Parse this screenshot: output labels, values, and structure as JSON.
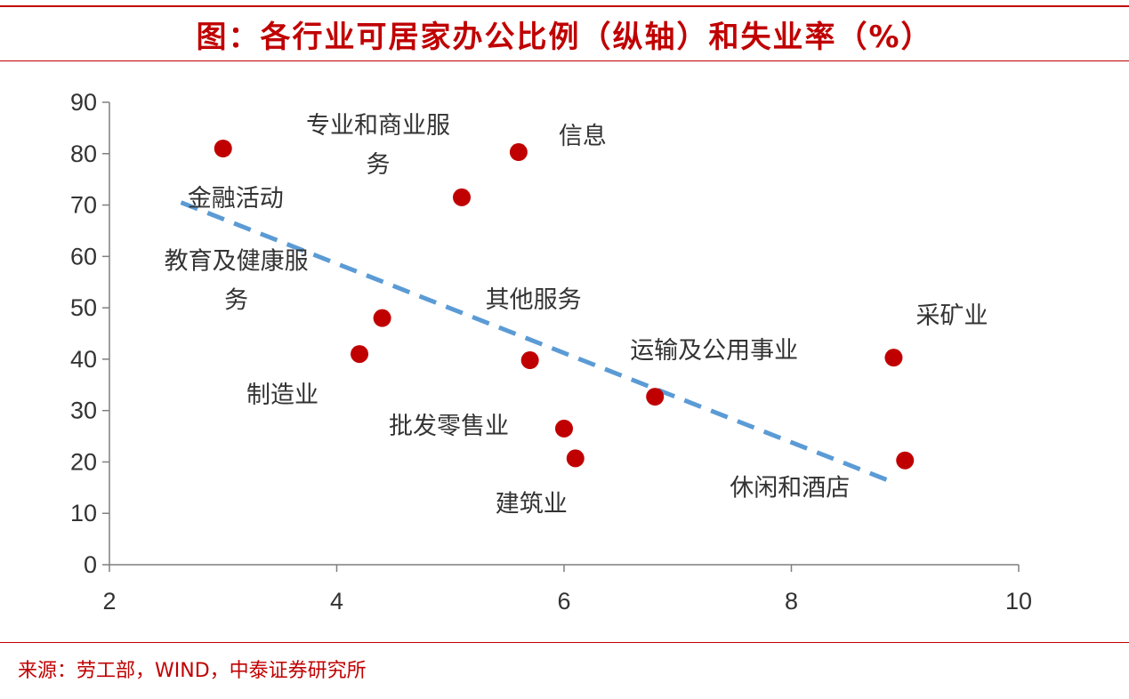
{
  "title": "图：各行业可居家办公比例（纵轴）和失业率（%）",
  "source": "来源：劳工部，WIND，中泰证券研究所",
  "colors": {
    "accent": "#c00000",
    "point": "#c00000",
    "trend": "#5b9bd5",
    "axis": "#7f7f7f"
  },
  "chart_data": {
    "type": "scatter",
    "xlim": [
      2,
      10
    ],
    "ylim": [
      0,
      90
    ],
    "xticks": [
      2,
      4,
      6,
      8,
      10
    ],
    "yticks": [
      0,
      10,
      20,
      30,
      40,
      50,
      60,
      70,
      80,
      90
    ],
    "grid": false,
    "points": [
      {
        "label": [
          "金融活动"
        ],
        "x": 3.0,
        "y": 81
      },
      {
        "label": [
          "专业和商业服",
          "务"
        ],
        "x": 5.1,
        "y": 71.5
      },
      {
        "label": [
          "信息"
        ],
        "x": 5.6,
        "y": 80.3
      },
      {
        "label": [
          "教育及健康服",
          "务"
        ],
        "x": 4.4,
        "y": 48
      },
      {
        "label": [
          "制造业"
        ],
        "x": 4.2,
        "y": 41
      },
      {
        "label": [
          "其他服务"
        ],
        "x": 5.7,
        "y": 39.8
      },
      {
        "label": [
          "批发零售业"
        ],
        "x": 6.0,
        "y": 26.5
      },
      {
        "label": [
          "建筑业"
        ],
        "x": 6.1,
        "y": 20.7
      },
      {
        "label": [
          "运输及公用事业"
        ],
        "x": 6.8,
        "y": 32.7
      },
      {
        "label": [
          "采矿业"
        ],
        "x": 8.9,
        "y": 40.3
      },
      {
        "label": [
          "休闲和酒店"
        ],
        "x": 9.0,
        "y": 20.3
      }
    ],
    "trendline": {
      "x": [
        2.63,
        8.9
      ],
      "y": [
        70.5,
        16
      ]
    }
  }
}
